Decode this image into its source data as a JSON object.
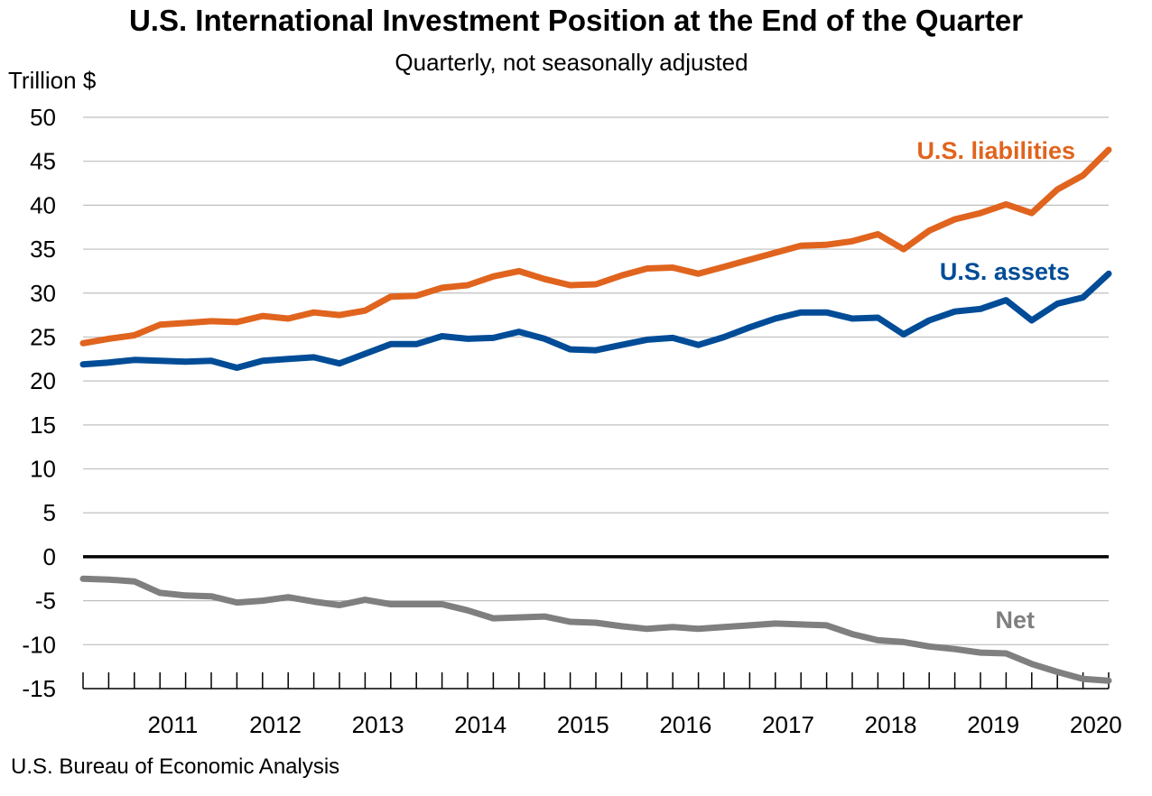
{
  "chart_data": {
    "type": "line",
    "title": "U.S. International Investment Position at the End of the Quarter",
    "subtitle": "Quarterly, not seasonally adjusted",
    "ylabel": "Trillion $",
    "xlabel": "",
    "ylim": [
      -15,
      50
    ],
    "y_ticks": [
      50,
      45,
      40,
      35,
      30,
      25,
      20,
      15,
      10,
      5,
      0,
      -5,
      -10,
      -15
    ],
    "year_labels": [
      "2011",
      "2012",
      "2013",
      "2014",
      "2015",
      "2016",
      "2017",
      "2018",
      "2019",
      "2020"
    ],
    "x_quarters": [
      "2010Q3",
      "2010Q4",
      "2011Q1",
      "2011Q2",
      "2011Q3",
      "2011Q4",
      "2012Q1",
      "2012Q2",
      "2012Q3",
      "2012Q4",
      "2013Q1",
      "2013Q2",
      "2013Q3",
      "2013Q4",
      "2014Q1",
      "2014Q2",
      "2014Q3",
      "2014Q4",
      "2015Q1",
      "2015Q2",
      "2015Q3",
      "2015Q4",
      "2016Q1",
      "2016Q2",
      "2016Q3",
      "2016Q4",
      "2017Q1",
      "2017Q2",
      "2017Q3",
      "2017Q4",
      "2018Q1",
      "2018Q2",
      "2018Q3",
      "2018Q4",
      "2019Q1",
      "2019Q2",
      "2019Q3",
      "2019Q4",
      "2020Q1",
      "2020Q2",
      "2020Q3"
    ],
    "grid": true,
    "series": [
      {
        "name": "U.S. liabilities",
        "color": "#E0641E",
        "values": [
          24.3,
          24.8,
          25.2,
          26.4,
          26.6,
          26.8,
          26.7,
          27.4,
          27.1,
          27.8,
          27.5,
          28.0,
          29.6,
          29.7,
          30.6,
          30.9,
          31.9,
          32.5,
          31.6,
          30.9,
          31.0,
          32.0,
          32.8,
          32.9,
          32.2,
          33.0,
          33.8,
          34.6,
          35.4,
          35.5,
          35.9,
          36.7,
          35.0,
          37.1,
          38.4,
          39.1,
          40.1,
          39.1,
          41.8,
          43.4,
          46.3
        ]
      },
      {
        "name": "U.S. assets",
        "color": "#004C97",
        "values": [
          21.9,
          22.1,
          22.4,
          22.3,
          22.2,
          22.3,
          21.5,
          22.3,
          22.5,
          22.7,
          22.0,
          23.1,
          24.2,
          24.2,
          25.1,
          24.8,
          24.9,
          25.6,
          24.8,
          23.6,
          23.5,
          24.1,
          24.7,
          24.9,
          24.1,
          25.0,
          26.1,
          27.1,
          27.8,
          27.8,
          27.1,
          27.2,
          25.3,
          26.9,
          27.9,
          28.2,
          29.2,
          26.9,
          28.8,
          29.5,
          32.2
        ]
      },
      {
        "name": "Net",
        "color": "#7F7F7F",
        "values": [
          -2.5,
          -2.6,
          -2.8,
          -4.1,
          -4.4,
          -4.5,
          -5.2,
          -5.0,
          -4.6,
          -5.1,
          -5.5,
          -4.9,
          -5.4,
          -5.4,
          -5.4,
          -6.1,
          -7.0,
          -6.9,
          -6.8,
          -7.4,
          -7.5,
          -7.9,
          -8.2,
          -8.0,
          -8.2,
          -8.0,
          -7.8,
          -7.6,
          -7.7,
          -7.8,
          -8.8,
          -9.5,
          -9.7,
          -10.2,
          -10.5,
          -10.9,
          -11.0,
          -12.2,
          -13.1,
          -13.9,
          -14.1
        ]
      }
    ]
  },
  "source": "U.S. Bureau of Economic Analysis"
}
